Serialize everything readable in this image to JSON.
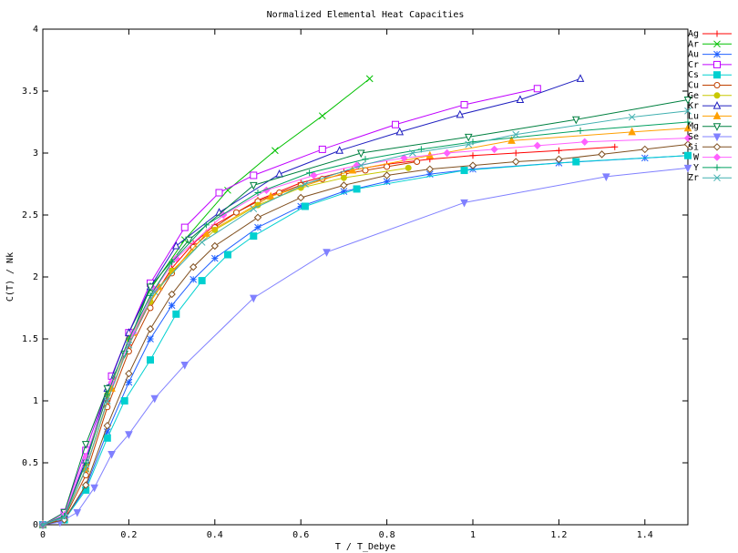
{
  "chart_data": {
    "type": "line",
    "title": "Normalized Elemental Heat Capacities",
    "xlabel": "T / T_Debye",
    "ylabel": "C(T) / Nk",
    "xlim": [
      0,
      1.5
    ],
    "ylim": [
      0,
      4
    ],
    "x_ticks": [
      "0",
      "0.2",
      "0.4",
      "0.6",
      "0.8",
      "1",
      "1.2",
      "1.4"
    ],
    "y_ticks": [
      "0",
      "0.5",
      "1",
      "1.5",
      "2",
      "2.5",
      "3",
      "3.5",
      "4"
    ],
    "grid": false,
    "legend_position": "top-right",
    "series": [
      {
        "name": "Ag",
        "color": "#ff0000",
        "marker": "plus",
        "points": [
          [
            0,
            0
          ],
          [
            0.05,
            0.06
          ],
          [
            0.1,
            0.45
          ],
          [
            0.15,
            1.0
          ],
          [
            0.2,
            1.45
          ],
          [
            0.25,
            1.8
          ],
          [
            0.3,
            2.07
          ],
          [
            0.35,
            2.27
          ],
          [
            0.4,
            2.42
          ],
          [
            0.5,
            2.62
          ],
          [
            0.6,
            2.76
          ],
          [
            0.7,
            2.85
          ],
          [
            0.8,
            2.91
          ],
          [
            0.9,
            2.95
          ],
          [
            1.0,
            2.98
          ],
          [
            1.1,
            3.0
          ],
          [
            1.2,
            3.02
          ],
          [
            1.33,
            3.05
          ]
        ]
      },
      {
        "name": "Ar",
        "color": "#00c000",
        "marker": "x",
        "points": [
          [
            0,
            0
          ],
          [
            0.05,
            0.08
          ],
          [
            0.1,
            0.5
          ],
          [
            0.15,
            1.1
          ],
          [
            0.2,
            1.55
          ],
          [
            0.25,
            1.9
          ],
          [
            0.33,
            2.3
          ],
          [
            0.43,
            2.7
          ],
          [
            0.54,
            3.02
          ],
          [
            0.65,
            3.3
          ],
          [
            0.76,
            3.6
          ]
        ]
      },
      {
        "name": "Au",
        "color": "#2060ff",
        "marker": "star",
        "points": [
          [
            0,
            0
          ],
          [
            0.05,
            0.04
          ],
          [
            0.1,
            0.3
          ],
          [
            0.15,
            0.75
          ],
          [
            0.2,
            1.15
          ],
          [
            0.25,
            1.5
          ],
          [
            0.3,
            1.77
          ],
          [
            0.35,
            1.98
          ],
          [
            0.4,
            2.15
          ],
          [
            0.5,
            2.4
          ],
          [
            0.6,
            2.57
          ],
          [
            0.7,
            2.69
          ],
          [
            0.8,
            2.77
          ],
          [
            0.9,
            2.83
          ],
          [
            1.0,
            2.87
          ],
          [
            1.2,
            2.92
          ],
          [
            1.4,
            2.96
          ],
          [
            1.5,
            2.98
          ]
        ]
      },
      {
        "name": "Cr",
        "color": "#c000ff",
        "marker": "square",
        "points": [
          [
            0,
            0
          ],
          [
            0.05,
            0.1
          ],
          [
            0.1,
            0.6
          ],
          [
            0.16,
            1.2
          ],
          [
            0.2,
            1.55
          ],
          [
            0.25,
            1.95
          ],
          [
            0.33,
            2.4
          ],
          [
            0.41,
            2.68
          ],
          [
            0.49,
            2.82
          ],
          [
            0.65,
            3.03
          ],
          [
            0.82,
            3.23
          ],
          [
            0.98,
            3.39
          ],
          [
            1.15,
            3.52
          ]
        ]
      },
      {
        "name": "Cs",
        "color": "#00d0d0",
        "marker": "filled-square",
        "points": [
          [
            0,
            0
          ],
          [
            0.05,
            0.04
          ],
          [
            0.1,
            0.28
          ],
          [
            0.15,
            0.7
          ],
          [
            0.19,
            1.0
          ],
          [
            0.25,
            1.33
          ],
          [
            0.31,
            1.7
          ],
          [
            0.37,
            1.97
          ],
          [
            0.43,
            2.18
          ],
          [
            0.49,
            2.33
          ],
          [
            0.61,
            2.57
          ],
          [
            0.73,
            2.71
          ],
          [
            0.98,
            2.86
          ],
          [
            1.24,
            2.93
          ],
          [
            1.5,
            2.98
          ]
        ]
      },
      {
        "name": "Cu",
        "color": "#c04000",
        "marker": "circle",
        "points": [
          [
            0,
            0
          ],
          [
            0.05,
            0.05
          ],
          [
            0.1,
            0.4
          ],
          [
            0.15,
            0.95
          ],
          [
            0.2,
            1.4
          ],
          [
            0.25,
            1.75
          ],
          [
            0.3,
            2.03
          ],
          [
            0.35,
            2.24
          ],
          [
            0.4,
            2.4
          ],
          [
            0.45,
            2.52
          ],
          [
            0.5,
            2.61
          ],
          [
            0.55,
            2.68
          ],
          [
            0.6,
            2.74
          ],
          [
            0.65,
            2.79
          ],
          [
            0.7,
            2.83
          ],
          [
            0.75,
            2.86
          ],
          [
            0.8,
            2.89
          ],
          [
            0.87,
            2.93
          ]
        ]
      },
      {
        "name": "Ge",
        "color": "#c8c800",
        "marker": "filled-circle",
        "points": [
          [
            0,
            0
          ],
          [
            0.05,
            0.07
          ],
          [
            0.1,
            0.5
          ],
          [
            0.15,
            1.05
          ],
          [
            0.2,
            1.5
          ],
          [
            0.25,
            1.8
          ],
          [
            0.3,
            2.05
          ],
          [
            0.4,
            2.38
          ],
          [
            0.5,
            2.58
          ],
          [
            0.6,
            2.72
          ],
          [
            0.7,
            2.8
          ],
          [
            0.85,
            2.88
          ]
        ]
      },
      {
        "name": "Kr",
        "color": "#2020c0",
        "marker": "triangle",
        "points": [
          [
            0,
            0
          ],
          [
            0.05,
            0.08
          ],
          [
            0.1,
            0.52
          ],
          [
            0.15,
            1.1
          ],
          [
            0.2,
            1.55
          ],
          [
            0.25,
            1.92
          ],
          [
            0.31,
            2.25
          ],
          [
            0.41,
            2.52
          ],
          [
            0.55,
            2.83
          ],
          [
            0.69,
            3.02
          ],
          [
            0.83,
            3.17
          ],
          [
            0.97,
            3.31
          ],
          [
            1.11,
            3.43
          ],
          [
            1.25,
            3.6
          ]
        ]
      },
      {
        "name": "Lu",
        "color": "#ffa000",
        "marker": "filled-triangle",
        "points": [
          [
            0,
            0
          ],
          [
            0.05,
            0.06
          ],
          [
            0.1,
            0.45
          ],
          [
            0.16,
            1.1
          ],
          [
            0.21,
            1.55
          ],
          [
            0.27,
            1.92
          ],
          [
            0.38,
            2.35
          ],
          [
            0.53,
            2.65
          ],
          [
            0.72,
            2.86
          ],
          [
            0.9,
            2.98
          ],
          [
            1.09,
            3.1
          ],
          [
            1.37,
            3.17
          ],
          [
            1.5,
            3.2
          ]
        ]
      },
      {
        "name": "Mg",
        "color": "#008040",
        "marker": "inv-triangle",
        "points": [
          [
            0,
            0
          ],
          [
            0.05,
            0.1
          ],
          [
            0.1,
            0.65
          ],
          [
            0.15,
            1.1
          ],
          [
            0.19,
            1.38
          ],
          [
            0.25,
            1.92
          ],
          [
            0.34,
            2.3
          ],
          [
            0.49,
            2.74
          ],
          [
            0.74,
            3.0
          ],
          [
            0.99,
            3.13
          ],
          [
            1.24,
            3.27
          ],
          [
            1.5,
            3.43
          ]
        ]
      },
      {
        "name": "Se",
        "color": "#8080ff",
        "marker": "filled-inv-triangle",
        "points": [
          [
            0,
            0
          ],
          [
            0.04,
            0.02
          ],
          [
            0.08,
            0.1
          ],
          [
            0.12,
            0.3
          ],
          [
            0.16,
            0.57
          ],
          [
            0.2,
            0.73
          ],
          [
            0.26,
            1.02
          ],
          [
            0.33,
            1.29
          ],
          [
            0.49,
            1.83
          ],
          [
            0.66,
            2.2
          ],
          [
            0.98,
            2.6
          ],
          [
            1.31,
            2.81
          ],
          [
            1.5,
            2.88
          ]
        ]
      },
      {
        "name": "Si",
        "color": "#805020",
        "marker": "diamond",
        "points": [
          [
            0,
            0
          ],
          [
            0.05,
            0.04
          ],
          [
            0.1,
            0.32
          ],
          [
            0.15,
            0.8
          ],
          [
            0.2,
            1.22
          ],
          [
            0.25,
            1.58
          ],
          [
            0.3,
            1.86
          ],
          [
            0.35,
            2.08
          ],
          [
            0.4,
            2.25
          ],
          [
            0.5,
            2.48
          ],
          [
            0.6,
            2.64
          ],
          [
            0.7,
            2.74
          ],
          [
            0.8,
            2.82
          ],
          [
            0.9,
            2.87
          ],
          [
            1.0,
            2.9
          ],
          [
            1.1,
            2.93
          ],
          [
            1.2,
            2.95
          ],
          [
            1.3,
            2.99
          ],
          [
            1.4,
            3.03
          ],
          [
            1.5,
            3.07
          ]
        ]
      },
      {
        "name": "W",
        "color": "#ff60ff",
        "marker": "filled-diamond",
        "points": [
          [
            0,
            0
          ],
          [
            0.05,
            0.08
          ],
          [
            0.1,
            0.55
          ],
          [
            0.16,
            1.15
          ],
          [
            0.21,
            1.55
          ],
          [
            0.26,
            1.9
          ],
          [
            0.31,
            2.15
          ],
          [
            0.42,
            2.5
          ],
          [
            0.52,
            2.7
          ],
          [
            0.63,
            2.82
          ],
          [
            0.73,
            2.9
          ],
          [
            0.84,
            2.96
          ],
          [
            0.94,
            3.0
          ],
          [
            1.05,
            3.03
          ],
          [
            1.15,
            3.06
          ],
          [
            1.26,
            3.09
          ],
          [
            1.5,
            3.12
          ]
        ]
      },
      {
        "name": "Y",
        "color": "#00a060",
        "marker": "plus",
        "points": [
          [
            0,
            0
          ],
          [
            0.05,
            0.07
          ],
          [
            0.1,
            0.5
          ],
          [
            0.15,
            1.05
          ],
          [
            0.2,
            1.5
          ],
          [
            0.25,
            1.85
          ],
          [
            0.3,
            2.12
          ],
          [
            0.38,
            2.42
          ],
          [
            0.5,
            2.68
          ],
          [
            0.62,
            2.84
          ],
          [
            0.75,
            2.95
          ],
          [
            0.88,
            3.03
          ],
          [
            1.0,
            3.09
          ],
          [
            1.25,
            3.18
          ],
          [
            1.5,
            3.25
          ]
        ]
      },
      {
        "name": "Zr",
        "color": "#40b0b0",
        "marker": "x",
        "points": [
          [
            0,
            0
          ],
          [
            0.05,
            0.06
          ],
          [
            0.1,
            0.45
          ],
          [
            0.15,
            1.0
          ],
          [
            0.2,
            1.45
          ],
          [
            0.26,
            1.88
          ],
          [
            0.37,
            2.28
          ],
          [
            0.49,
            2.55
          ],
          [
            0.61,
            2.75
          ],
          [
            0.74,
            2.9
          ],
          [
            0.86,
            3.0
          ],
          [
            0.99,
            3.07
          ],
          [
            1.1,
            3.15
          ],
          [
            1.37,
            3.29
          ],
          [
            1.5,
            3.34
          ]
        ]
      }
    ]
  }
}
